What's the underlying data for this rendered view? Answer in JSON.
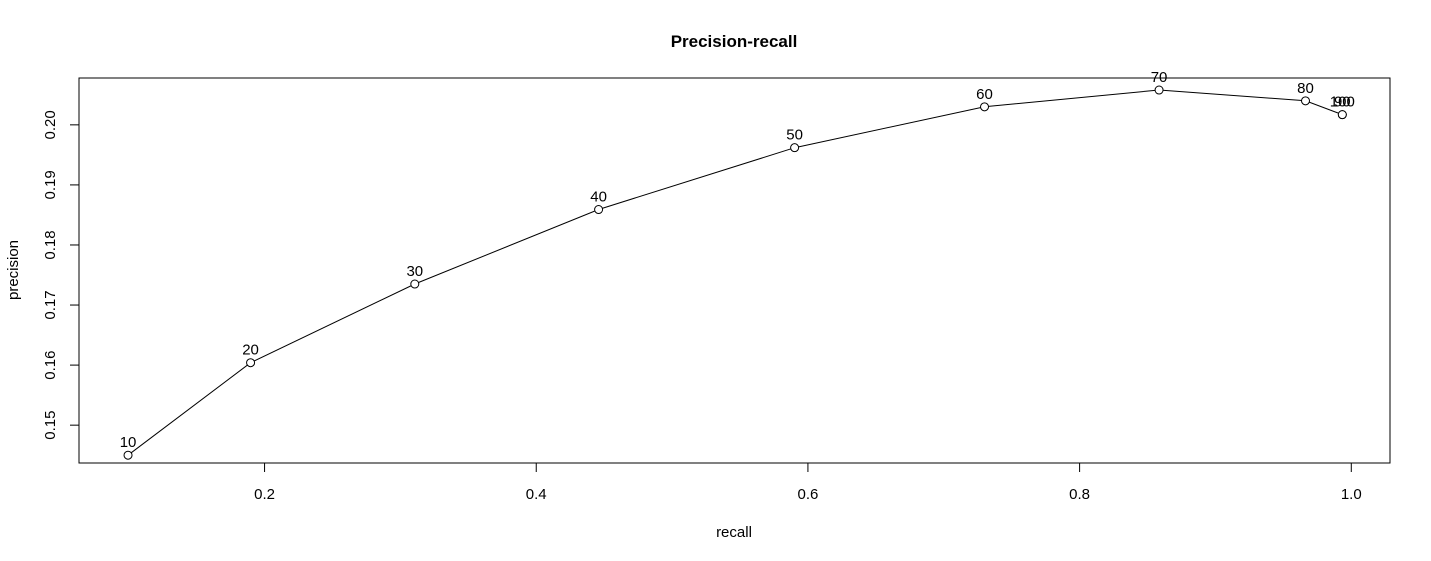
{
  "chart_data": {
    "type": "line",
    "title": "Precision-recall",
    "xlabel": "recall",
    "ylabel": "precision",
    "xlim": [
      0.0634,
      1.0285
    ],
    "ylim": [
      0.1437,
      0.2078
    ],
    "x_ticks": [
      0.2,
      0.4,
      0.6,
      0.8,
      1.0
    ],
    "x_tick_labels": [
      "0.2",
      "0.4",
      "0.6",
      "0.8",
      "1.0"
    ],
    "y_ticks": [
      0.15,
      0.16,
      0.17,
      0.18,
      0.19,
      0.2
    ],
    "y_tick_labels": [
      "0.15",
      "0.16",
      "0.17",
      "0.18",
      "0.19",
      "0.20"
    ],
    "grid": false,
    "marker": "open-circle",
    "series": [
      {
        "x": [
          0.0995,
          0.1897,
          0.3106,
          0.4459,
          0.5902,
          0.73,
          0.8585,
          0.9663,
          0.9934,
          0.9934
        ],
        "y": [
          0.145,
          0.1604,
          0.1735,
          0.1859,
          0.1962,
          0.203,
          0.2058,
          0.204,
          0.2017,
          0.2017
        ],
        "point_labels": [
          "10",
          "20",
          "30",
          "40",
          "50",
          "60",
          "70",
          "80",
          "90",
          "100"
        ]
      }
    ]
  }
}
